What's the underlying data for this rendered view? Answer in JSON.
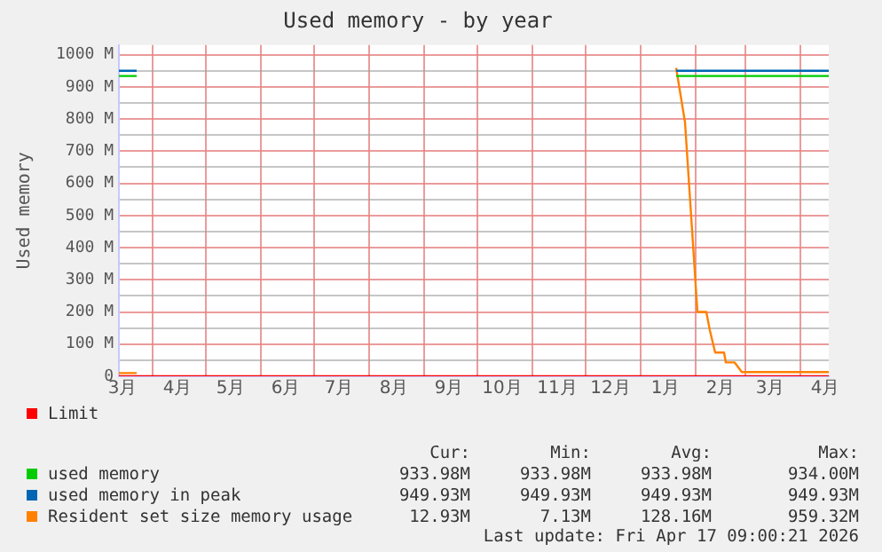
{
  "chart_data": {
    "type": "line",
    "title": "Used memory - by year",
    "ylabel": "Used memory",
    "xlim": [
      "2025-03-13",
      "2026-04-17"
    ],
    "xticks": [
      {
        "value": "2025-03-15",
        "label": "3月"
      },
      {
        "value": "2025-04-01",
        "label": null
      },
      {
        "value": "2025-04-15",
        "label": "4月"
      },
      {
        "value": "2025-05-01",
        "label": null
      },
      {
        "value": "2025-05-15",
        "label": "5月"
      },
      {
        "value": "2025-06-01",
        "label": null
      },
      {
        "value": "2025-06-15",
        "label": "6月"
      },
      {
        "value": "2025-07-01",
        "label": null
      },
      {
        "value": "2025-07-15",
        "label": "7月"
      },
      {
        "value": "2025-08-01",
        "label": null
      },
      {
        "value": "2025-08-15",
        "label": "8月"
      },
      {
        "value": "2025-09-01",
        "label": null
      },
      {
        "value": "2025-09-15",
        "label": "9月"
      },
      {
        "value": "2025-10-01",
        "label": null
      },
      {
        "value": "2025-10-15",
        "label": "10月"
      },
      {
        "value": "2025-11-01",
        "label": null
      },
      {
        "value": "2025-11-15",
        "label": "11月"
      },
      {
        "value": "2025-12-01",
        "label": null
      },
      {
        "value": "2025-12-15",
        "label": "12月"
      },
      {
        "value": "2026-01-01",
        "label": null
      },
      {
        "value": "2026-01-15",
        "label": "1月"
      },
      {
        "value": "2026-02-01",
        "label": null
      },
      {
        "value": "2026-02-15",
        "label": "2月"
      },
      {
        "value": "2026-03-01",
        "label": null
      },
      {
        "value": "2026-03-15",
        "label": "3月"
      },
      {
        "value": "2026-04-01",
        "label": null
      },
      {
        "value": "2026-04-15",
        "label": "4月"
      }
    ],
    "ylim": [
      0,
      1030
    ],
    "yticks": [
      {
        "value": 0,
        "label": "0"
      },
      {
        "value": 50,
        "label": null
      },
      {
        "value": 100,
        "label": "100 M"
      },
      {
        "value": 150,
        "label": null
      },
      {
        "value": 200,
        "label": "200 M"
      },
      {
        "value": 250,
        "label": null
      },
      {
        "value": 300,
        "label": "300 M"
      },
      {
        "value": 350,
        "label": null
      },
      {
        "value": 400,
        "label": "400 M"
      },
      {
        "value": 450,
        "label": null
      },
      {
        "value": 500,
        "label": "500 M"
      },
      {
        "value": 550,
        "label": null
      },
      {
        "value": 600,
        "label": "600 M"
      },
      {
        "value": 650,
        "label": null
      },
      {
        "value": 700,
        "label": "700 M"
      },
      {
        "value": 750,
        "label": null
      },
      {
        "value": 800,
        "label": "800 M"
      },
      {
        "value": 850,
        "label": null
      },
      {
        "value": 900,
        "label": "900 M"
      },
      {
        "value": 950,
        "label": null
      },
      {
        "value": 1000,
        "label": "1000 M"
      }
    ],
    "grid": true,
    "legend": "bottom",
    "marker": "none",
    "line_style": "solid",
    "series": [
      {
        "name": "Limit",
        "color": "#ff0000",
        "x": [
          "2025-03-13",
          "2026-04-17"
        ],
        "values": [
          0,
          0
        ]
      },
      {
        "name": "used memory",
        "color": "#00cc00",
        "x": [
          "2025-03-13",
          "2025-03-23",
          "2025-03-24",
          "2026-01-21",
          "2026-04-17"
        ],
        "values": [
          934,
          934,
          null,
          934,
          934
        ]
      },
      {
        "name": "used memory in peak",
        "color": "#0066b3",
        "x": [
          "2025-03-13",
          "2025-03-23",
          "2025-03-24",
          "2026-01-21",
          "2026-04-17"
        ],
        "values": [
          950,
          950,
          null,
          950,
          950
        ]
      },
      {
        "name": "Resident set size memory usage",
        "color": "#ff8000",
        "x": [
          "2025-03-13",
          "2025-03-23",
          "2025-03-24",
          "2026-01-21",
          "2026-01-26",
          "2026-02-02",
          "2026-02-07",
          "2026-02-09",
          "2026-02-12",
          "2026-02-17",
          "2026-02-18",
          "2026-02-23",
          "2026-02-27",
          "2026-04-17"
        ],
        "values": [
          10,
          10,
          null,
          959,
          790,
          200,
          200,
          143,
          74,
          74,
          43,
          43,
          13,
          13
        ]
      }
    ],
    "annotations": [
      "Cur:",
      "Min:",
      "Avg:",
      "Max:",
      "933.98M",
      "933.98M",
      "933.98M",
      "934.00M",
      "949.93M",
      "949.93M",
      "949.93M",
      "949.93M",
      "12.93M",
      "7.13M",
      "128.16M",
      "959.32M",
      "Last update: Fri Apr 17 09:00:21 2026"
    ]
  }
}
